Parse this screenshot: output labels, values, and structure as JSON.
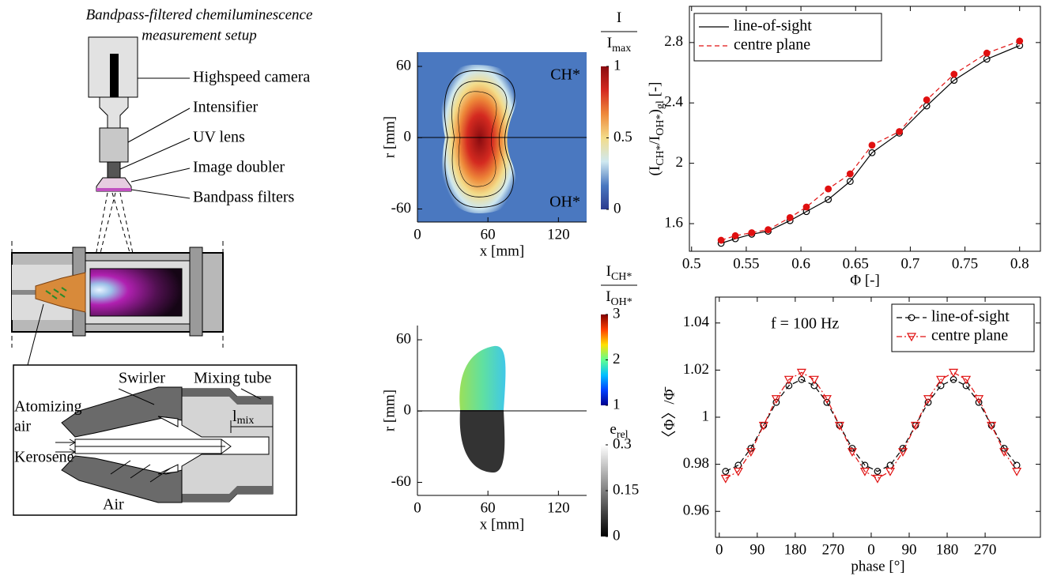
{
  "setup": {
    "title": [
      "Bandpass-filtered chemiluminescence",
      "measurement setup"
    ],
    "labels": [
      "Highspeed camera",
      "Intensifier",
      "UV lens",
      "Image doubler",
      "Bandpass filters"
    ]
  },
  "detail": {
    "swirler": "Swirler",
    "mixing_tube": "Mixing tube",
    "atomizing_air": [
      "Atomizing",
      "air"
    ],
    "kerosene": "Kerosene",
    "air": "Air",
    "l_mix": "l",
    "l_mix_sub": "mix"
  },
  "chart_data": [
    {
      "type": "heatmap",
      "xlabel": "x [mm]",
      "ylabel": "r [mm]",
      "xlim": [
        0,
        144
      ],
      "ylim": [
        -71,
        72
      ],
      "xticks": [
        0,
        60,
        120
      ],
      "yticks": [
        -60,
        0,
        60
      ],
      "annotations": [
        "CH*",
        "OH*"
      ],
      "colorbars": [
        {
          "numerator": "I",
          "denominator": "I",
          "denominator_sub": "max",
          "lim": [
            0,
            1
          ],
          "ticks": [
            0,
            0.5,
            1
          ],
          "colors": [
            "#2b3b8f",
            "#4a78c0",
            "#cfe8f0",
            "#f3dc8a",
            "#ee8a3a",
            "#d42a20",
            "#8a0c10"
          ]
        }
      ]
    },
    {
      "type": "heatmap",
      "xlabel": "x [mm]",
      "ylabel": "r [mm]",
      "xlim": [
        0,
        144
      ],
      "ylim": [
        -71,
        72
      ],
      "xticks": [
        0,
        60,
        120
      ],
      "yticks": [
        -60,
        0,
        60
      ],
      "colorbars": [
        {
          "numerator": "I",
          "numerator_sub": "CH*",
          "denominator": "I",
          "denominator_sub": "OH*",
          "lim": [
            1,
            3
          ],
          "ticks": [
            1,
            2,
            3
          ],
          "colors": [
            "#00008f",
            "#0040ff",
            "#00c0ff",
            "#60ff90",
            "#ffe000",
            "#ff4000",
            "#800000"
          ]
        },
        {
          "title": "e",
          "title_sub": "rel",
          "lim": [
            0,
            0.3
          ],
          "ticks": [
            0,
            0.15,
            0.3
          ],
          "colors": [
            "#000000",
            "#ffffff"
          ]
        }
      ]
    },
    {
      "type": "scatter",
      "xlabel": "Φ [-]",
      "ylabel_parts": [
        "(I",
        "CH*",
        "/I",
        "OH*",
        ")",
        "gl",
        " [-]"
      ],
      "xlim": [
        0.498,
        0.819
      ],
      "ylim": [
        1.417,
        3.04
      ],
      "xticks": [
        0.5,
        0.55,
        0.6,
        0.65,
        0.7,
        0.75,
        0.8
      ],
      "yticks": [
        1.6,
        2,
        2.4,
        2.8
      ],
      "legend": "upper left",
      "x": [
        0.527,
        0.54,
        0.555,
        0.57,
        0.59,
        0.605,
        0.625,
        0.645,
        0.665,
        0.69,
        0.715,
        0.74,
        0.77,
        0.8
      ],
      "series": [
        {
          "name": "line-of-sight",
          "color": "#000000",
          "marker": "circle",
          "filled": false,
          "dash": "none",
          "values": [
            1.47,
            1.5,
            1.53,
            1.55,
            1.62,
            1.68,
            1.76,
            1.88,
            2.07,
            2.2,
            2.38,
            2.55,
            2.69,
            2.78
          ]
        },
        {
          "name": "centre plane",
          "color": "#e01010",
          "marker": "circle",
          "filled": true,
          "dash": "6 4",
          "values": [
            1.49,
            1.52,
            1.54,
            1.56,
            1.64,
            1.71,
            1.83,
            1.93,
            2.12,
            2.21,
            2.42,
            2.59,
            2.73,
            2.81
          ]
        }
      ]
    },
    {
      "type": "line",
      "xlabel": "phase [°]",
      "ylabel": "〈Φ〉/Φ̄",
      "annotation": "f = 100 Hz",
      "xlim": [
        -9,
        761
      ],
      "ylim": [
        0.949,
        1.051
      ],
      "xticks": [
        0,
        90,
        180,
        270,
        {
          "value": 360,
          "label": "0"
        },
        {
          "value": 450,
          "label": "90"
        },
        {
          "value": 540,
          "label": "180"
        },
        {
          "value": 630,
          "label": "270"
        }
      ],
      "yticks": [
        0.96,
        0.98,
        1,
        1.02,
        1.04
      ],
      "legend": "upper right",
      "x": [
        15,
        45,
        75,
        105,
        135,
        165,
        195,
        225,
        255,
        285,
        315,
        345,
        375,
        405,
        435,
        465,
        495,
        525,
        555,
        585,
        615,
        645,
        675,
        705
      ],
      "series": [
        {
          "name": "line-of-sight",
          "color": "#000000",
          "marker": "circle",
          "filled": false,
          "dash": "7 4",
          "values": [
            0.977,
            0.9796,
            0.9868,
            0.9965,
            1.0063,
            1.0134,
            1.016,
            1.0134,
            1.0063,
            0.9965,
            0.9868,
            0.9796,
            0.977,
            0.9796,
            0.9868,
            0.9965,
            1.0063,
            1.0134,
            1.016,
            1.0134,
            1.0063,
            0.9965,
            0.9868,
            0.9796
          ]
        },
        {
          "name": "centre plane",
          "color": "#e01010",
          "marker": "triangle-down",
          "filled": false,
          "dash": "7 3 2 3",
          "values": [
            0.974,
            0.977,
            0.9853,
            0.9965,
            1.0078,
            1.016,
            1.019,
            1.016,
            1.0078,
            0.9965,
            0.9853,
            0.977,
            0.974,
            0.977,
            0.9853,
            0.9965,
            1.0078,
            1.016,
            1.019,
            1.016,
            1.0078,
            0.9965,
            0.9853,
            0.977
          ]
        }
      ]
    }
  ]
}
